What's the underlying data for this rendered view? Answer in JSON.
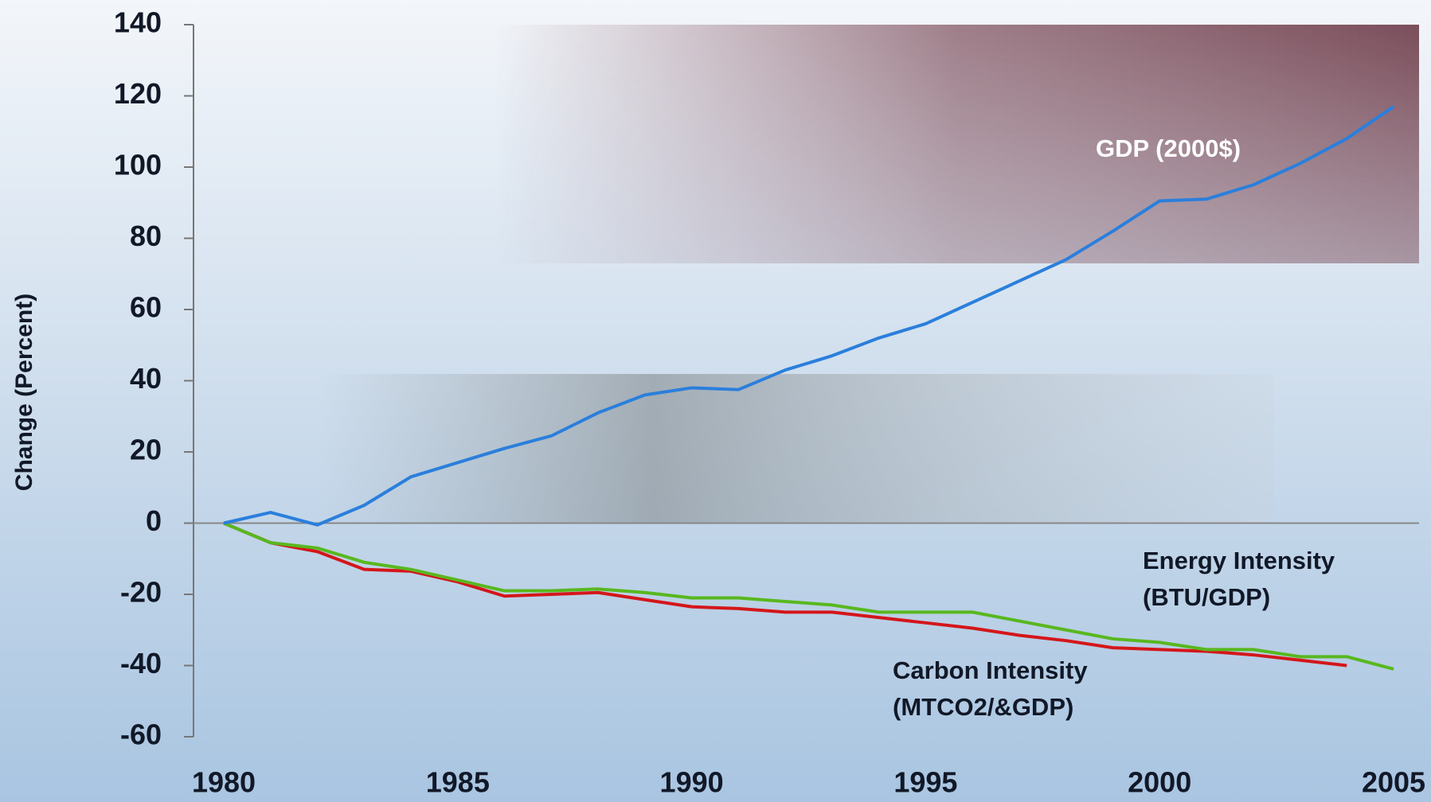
{
  "chart_data": {
    "type": "line",
    "y_axis_label": "Change (Percent)",
    "x": [
      1980,
      1981,
      1982,
      1983,
      1984,
      1985,
      1986,
      1987,
      1988,
      1989,
      1990,
      1991,
      1992,
      1993,
      1994,
      1995,
      1996,
      1997,
      1998,
      1999,
      2000,
      2001,
      2002,
      2003,
      2004,
      2005
    ],
    "series": [
      {
        "color": "#2a7fdc",
        "label": [
          "GDP (2000$)"
        ],
        "values": [
          0,
          3,
          -0.5,
          5,
          13,
          17,
          21,
          24.5,
          31,
          36,
          38,
          37.5,
          43,
          47,
          52,
          56,
          62,
          68,
          74,
          82,
          90.5,
          91,
          95,
          101,
          108,
          117
        ]
      },
      {
        "color": "#58b81e",
        "label": [
          "Energy Intensity",
          "(BTU/GDP)"
        ],
        "values": [
          0,
          -5.5,
          -7,
          -11,
          -13,
          -16,
          -19,
          -19,
          -18.5,
          -19.5,
          -21,
          -21,
          -22,
          -23,
          -25,
          -25,
          -25,
          -27.5,
          -30,
          -32.5,
          -33.5,
          -35.5,
          -35.5,
          -37.5,
          -37.5,
          -41
        ]
      },
      {
        "color": "#d4161a",
        "label": [
          "Carbon Intensity",
          "(MTCO2/&GDP)"
        ],
        "values": [
          0,
          -5.5,
          -8,
          -13,
          -13.5,
          -16.5,
          -20.5,
          -20,
          -19.5,
          -21.5,
          -23.5,
          -24,
          -25,
          -25,
          -26.5,
          -28,
          -29.5,
          -31.5,
          -33,
          -35,
          -35.5,
          -36,
          -37,
          -38.5,
          -40,
          null
        ]
      }
    ],
    "xlim": [
      1980,
      2005
    ],
    "xticks": [
      1980,
      1985,
      1990,
      1995,
      2000,
      2005
    ],
    "ylim": [
      -60,
      140
    ],
    "yticks": [
      -60,
      -40,
      -20,
      0,
      20,
      40,
      60,
      80,
      100,
      120,
      140
    ]
  }
}
